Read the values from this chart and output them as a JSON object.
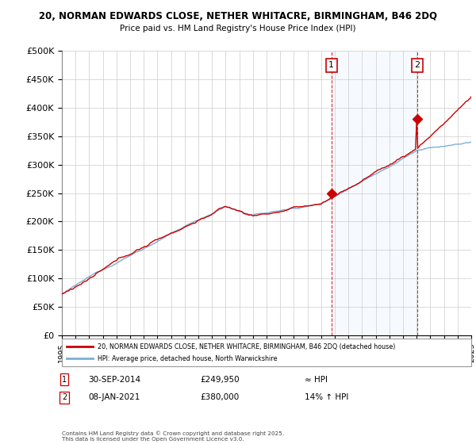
{
  "title_line1": "20, NORMAN EDWARDS CLOSE, NETHER WHITACRE, BIRMINGHAM, B46 2DQ",
  "title_line2": "Price paid vs. HM Land Registry's House Price Index (HPI)",
  "legend_line1": "20, NORMAN EDWARDS CLOSE, NETHER WHITACRE, BIRMINGHAM, B46 2DQ (detached house)",
  "legend_line2": "HPI: Average price, detached house, North Warwickshire",
  "marker1_date": "30-SEP-2014",
  "marker1_price": "£249,950",
  "marker1_hpi": "≈ HPI",
  "marker2_date": "08-JAN-2021",
  "marker2_price": "£380,000",
  "marker2_hpi": "14% ↑ HPI",
  "footer": "Contains HM Land Registry data © Crown copyright and database right 2025.\nThis data is licensed under the Open Government Licence v3.0.",
  "line_color_red": "#cc0000",
  "line_color_blue": "#7ab0d4",
  "shade_color": "#ddeeff",
  "background_color": "#ffffff",
  "grid_color": "#cccccc",
  "marker1_year": 2014.75,
  "marker2_year": 2021.03,
  "marker1_price_val": 249950,
  "marker2_price_val": 380000,
  "start_year": 1995,
  "end_year": 2025
}
